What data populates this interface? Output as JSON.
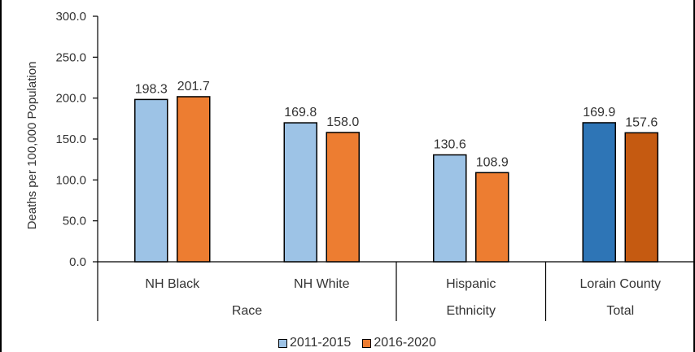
{
  "chart_data": {
    "type": "bar",
    "title": "",
    "xlabel": "",
    "ylabel": "Deaths per 100,000  Population",
    "ylim": [
      0,
      300
    ],
    "yticks": [
      "0.0",
      "50.0",
      "100.0",
      "150.0",
      "200.0",
      "250.0",
      "300.0"
    ],
    "categories": [
      "NH Black",
      "NH White",
      "Hispanic",
      "Lorain County"
    ],
    "groups": [
      {
        "label": "Race",
        "categories": [
          "NH Black",
          "NH White"
        ]
      },
      {
        "label": "Ethnicity",
        "categories": [
          "Hispanic"
        ]
      },
      {
        "label": "Total",
        "categories": [
          "Lorain County"
        ]
      }
    ],
    "series": [
      {
        "name": "2011-2015",
        "values": [
          198.3,
          169.8,
          130.6,
          169.9
        ],
        "value_labels": [
          "198.3",
          "169.8",
          "130.6",
          "169.9"
        ],
        "color": "#9DC3E6",
        "total_color": "#2E75B6"
      },
      {
        "name": "2016-2020",
        "values": [
          201.7,
          158.0,
          108.9,
          157.6
        ],
        "value_labels": [
          "201.7",
          "158.0",
          "108.9",
          "157.6"
        ],
        "color": "#ED7D31",
        "total_color": "#C55A11"
      }
    ],
    "grid": false,
    "legend_position": "bottom"
  }
}
